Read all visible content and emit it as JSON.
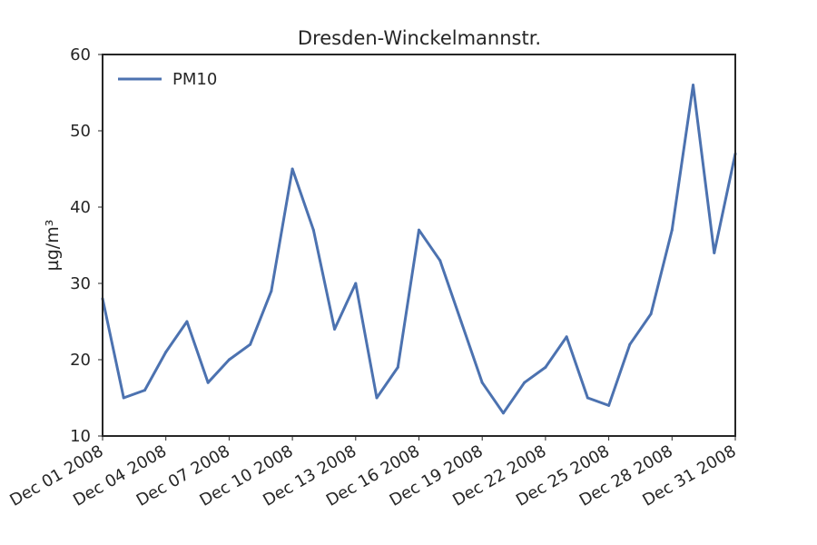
{
  "chart_data": {
    "type": "line",
    "title": "Dresden-Winckelmannstr.",
    "xlabel": "",
    "ylabel": "µg/m³",
    "ylim": [
      10,
      60
    ],
    "yticks": [
      10,
      20,
      30,
      40,
      50,
      60
    ],
    "xlim": [
      "2008-12-01",
      "2008-12-31"
    ],
    "xtick_labels": [
      "Dec 01 2008",
      "Dec 04 2008",
      "Dec 07 2008",
      "Dec 10 2008",
      "Dec 13 2008",
      "Dec 16 2008",
      "Dec 19 2008",
      "Dec 22 2008",
      "Dec 25 2008",
      "Dec 28 2008",
      "Dec 31 2008"
    ],
    "grid": false,
    "legend_position": "upper-left",
    "x": [
      "2008-12-01",
      "2008-12-02",
      "2008-12-03",
      "2008-12-04",
      "2008-12-05",
      "2008-12-06",
      "2008-12-07",
      "2008-12-08",
      "2008-12-09",
      "2008-12-10",
      "2008-12-11",
      "2008-12-12",
      "2008-12-13",
      "2008-12-14",
      "2008-12-15",
      "2008-12-16",
      "2008-12-17",
      "2008-12-18",
      "2008-12-19",
      "2008-12-20",
      "2008-12-21",
      "2008-12-22",
      "2008-12-23",
      "2008-12-24",
      "2008-12-25",
      "2008-12-26",
      "2008-12-27",
      "2008-12-28",
      "2008-12-29",
      "2008-12-30",
      "2008-12-31"
    ],
    "series": [
      {
        "name": "PM10",
        "color": "#4c72b0",
        "values": [
          28,
          15,
          16,
          21,
          25,
          17,
          20,
          22,
          29,
          45,
          37,
          24,
          30,
          15,
          19,
          37,
          33,
          25,
          17,
          13,
          17,
          19,
          23,
          15,
          14,
          22,
          26,
          37,
          56,
          34,
          47
        ]
      }
    ]
  }
}
